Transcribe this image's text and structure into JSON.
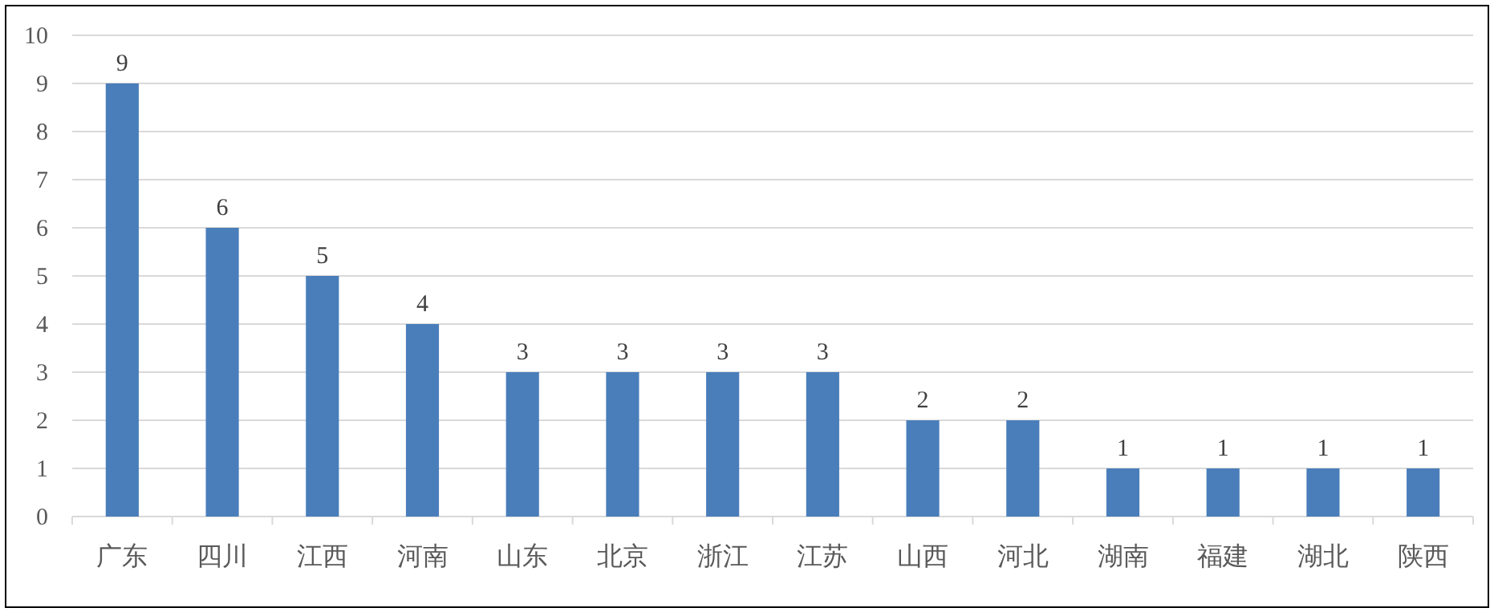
{
  "chart_data": {
    "type": "bar",
    "categories": [
      "广东",
      "四川",
      "江西",
      "河南",
      "山东",
      "北京",
      "浙江",
      "江苏",
      "山西",
      "河北",
      "湖南",
      "福建",
      "湖北",
      "陕西"
    ],
    "values": [
      9,
      6,
      5,
      4,
      3,
      3,
      3,
      3,
      2,
      2,
      1,
      1,
      1,
      1
    ],
    "color": "#4a7ebb",
    "ylim": [
      0,
      10
    ],
    "yticks": [
      0,
      1,
      2,
      3,
      4,
      5,
      6,
      7,
      8,
      9,
      10
    ],
    "grid": "y",
    "data_labels": true
  }
}
